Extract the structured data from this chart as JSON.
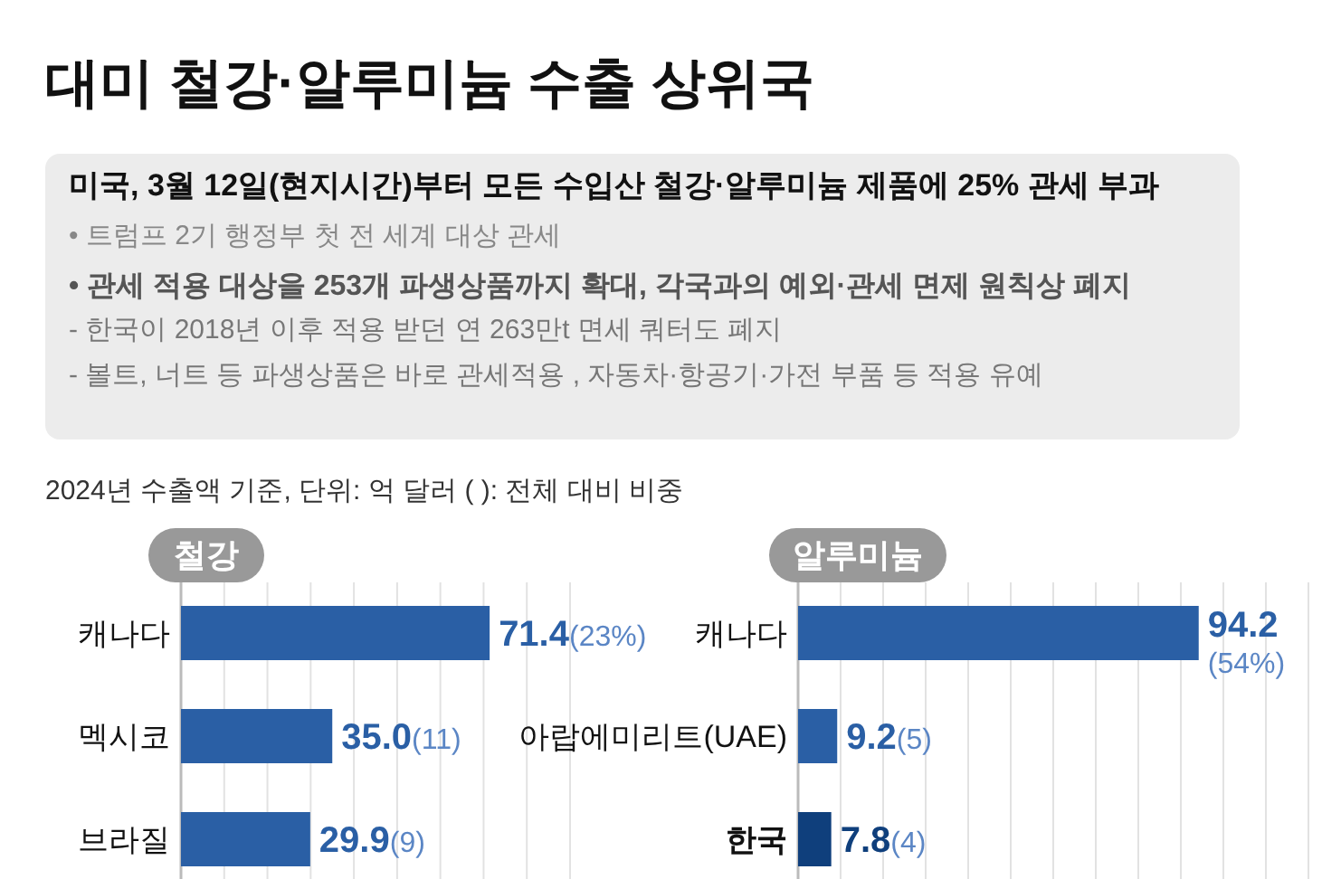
{
  "chart_data": [
    {
      "type": "other",
      "title": "대미 철강·알루미늄 수출 상위국",
      "annotations": [
        "미국, 3월 12일(현지시간)부터 모든 수입산 철강·알루미늄 제품에 25% 관세 부과",
        "• 트럼프 2기 행정부 첫 전 세계 대상 관세",
        "• 관세 적용 대상을 253개 파생상품까지 확대, 각국과의 예외·관세 면제 원칙상 폐지",
        "- 한국이 2018년 이후 적용 받던 연 263만t 면세 쿼터도 폐지",
        "- 볼트, 너트 등 파생상품은 바로 관세적용 , 자동차·항공기·가전 부품 등 적용 유예",
        "2024년 수출액 기준, 단위: 억 달러  ( ): 전체 대비 비중"
      ]
    },
    {
      "type": "bar",
      "orientation": "horizontal",
      "title": "철강",
      "categories": [
        "캐나다",
        "멕시코",
        "브라질"
      ],
      "values": [
        71.4,
        35.0,
        29.9
      ],
      "colors": [
        "#2a5fa5",
        "#2a5fa5",
        "#2a5fa5"
      ],
      "value_labels": [
        "71.4(23%)",
        "35.0(11)",
        "29.9(9)"
      ],
      "xlim": [
        0,
        90
      ],
      "xticks": [
        {
          "value": 10,
          "label": null
        },
        {
          "value": 20,
          "label": null
        },
        {
          "value": 30,
          "label": null
        },
        {
          "value": 40,
          "label": null
        },
        {
          "value": 50,
          "label": null
        },
        {
          "value": 60,
          "label": null
        },
        {
          "value": 70,
          "label": null
        },
        {
          "value": 80,
          "label": null
        },
        {
          "value": 90,
          "label": null
        }
      ],
      "grid": "x",
      "tick_labels": "y"
    },
    {
      "type": "bar",
      "orientation": "horizontal",
      "title": "알루미늄",
      "categories": [
        "캐나다",
        "아랍에미리트(UAE)",
        "한국"
      ],
      "values": [
        94.2,
        9.2,
        7.8
      ],
      "colors": [
        "#2a5fa5",
        "#2a5fa5",
        "#0f3f7c"
      ],
      "value_labels": [
        "94.2(54%)",
        "9.2(5)",
        "7.8(4)"
      ],
      "xlim": [
        0,
        120
      ],
      "xticks": [
        {
          "value": 10,
          "label": null
        },
        {
          "value": 20,
          "label": null
        },
        {
          "value": 30,
          "label": null
        },
        {
          "value": 40,
          "label": null
        },
        {
          "value": 50,
          "label": null
        },
        {
          "value": 60,
          "label": null
        },
        {
          "value": 70,
          "label": null
        },
        {
          "value": 80,
          "label": null
        },
        {
          "value": 90,
          "label": null
        },
        {
          "value": 100,
          "label": null
        },
        {
          "value": 110,
          "label": null
        },
        {
          "value": 120,
          "label": null
        }
      ],
      "grid": "x",
      "tick_labels": "y"
    }
  ]
}
